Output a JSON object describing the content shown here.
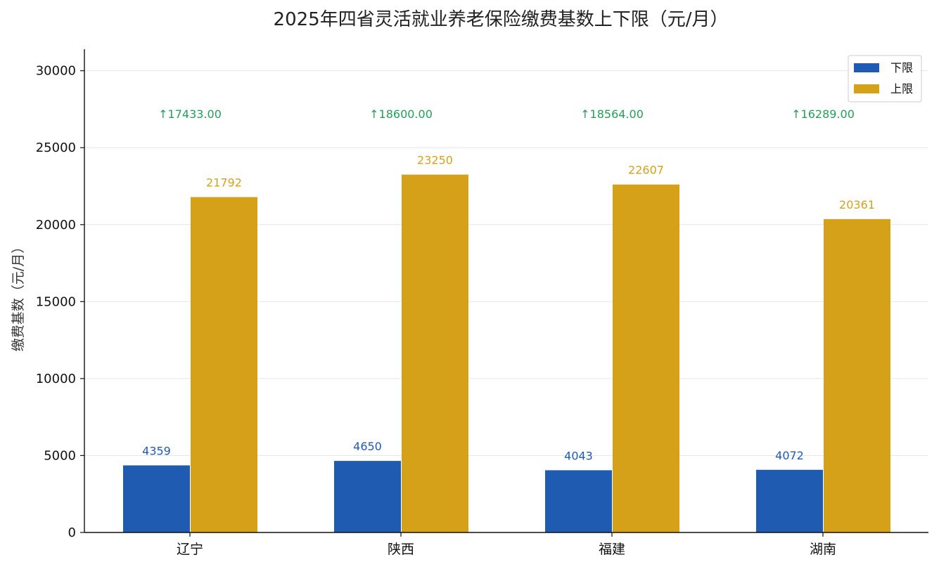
{
  "chart_data": {
    "type": "bar",
    "title": "2025年四省灵活就业养老保险缴费基数上下限（元/月）",
    "ylabel": "缴费基数（元/月）",
    "xlabel": "",
    "categories": [
      "辽宁",
      "陕西",
      "福建",
      "湖南"
    ],
    "series": [
      {
        "name": "下限",
        "values": [
          4359,
          4650,
          4043,
          4072
        ],
        "color": "#1f5bb0"
      },
      {
        "name": "上限",
        "values": [
          21792,
          23250,
          22607,
          20361
        ],
        "color": "#d4a119"
      }
    ],
    "differences": [
      "↑17433.00",
      "↑18600.00",
      "↑18564.00",
      "↑16289.00"
    ],
    "difference_value": 27200,
    "yticks": [
      0,
      5000,
      10000,
      15000,
      20000,
      25000,
      30000
    ],
    "ylim": [
      0,
      31400
    ],
    "grid": true,
    "legend": "top-right"
  },
  "colors": {
    "lower": "#1f5bb0",
    "upper": "#d4a119",
    "diff": "#22a05a"
  }
}
